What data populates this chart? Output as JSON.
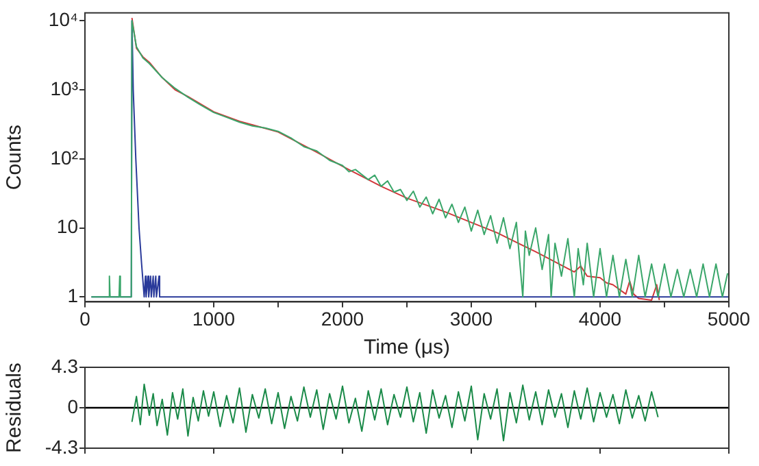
{
  "chart_data": [
    {
      "type": "line",
      "xlabel": "Time (μs)",
      "ylabel": "Counts",
      "log": "y",
      "marker": "none",
      "grid": false,
      "legend": false,
      "xlim": [
        0,
        5000
      ],
      "xticks": [
        0,
        {
          "value": 500,
          "label": null
        },
        1000,
        {
          "value": 1500,
          "label": null
        },
        2000,
        {
          "value": 2500,
          "label": null
        },
        3000,
        {
          "value": 3500,
          "label": null
        },
        4000,
        {
          "value": 4500,
          "label": null
        },
        5000
      ],
      "ylim": [
        0.85,
        13000
      ],
      "yticks": [
        1,
        10,
        {
          "value": 100,
          "label": "10²"
        },
        {
          "value": 1000,
          "label": "10³"
        },
        {
          "value": 10000,
          "label": "10⁴"
        }
      ],
      "series": [
        {
          "color": "#3aa66a",
          "x": [
            50,
            185,
            190,
            195,
            265,
            270,
            275,
            360,
            365,
            400,
            450,
            500,
            600,
            700,
            800,
            900,
            1000,
            1100,
            1200,
            1300,
            1400,
            1500,
            1600,
            1700,
            1800,
            1900,
            2000,
            2050,
            2100,
            2200,
            2250,
            2300,
            2350,
            2400,
            2450,
            2500,
            2550,
            2600,
            2650,
            2700,
            2750,
            2800,
            2850,
            2900,
            2950,
            3000,
            3050,
            3100,
            3150,
            3200,
            3250,
            3300,
            3350,
            3400,
            3420,
            3450,
            3500,
            3550,
            3600,
            3620,
            3650,
            3700,
            3750,
            3800,
            3830,
            3870,
            3900,
            3950,
            4000,
            4050,
            4100,
            4150,
            4200,
            4250,
            4300,
            4350,
            4400,
            4450,
            4500,
            4550,
            4600,
            4650,
            4700,
            4750,
            4800,
            4850,
            4900,
            4950,
            4990
          ],
          "values": [
            1,
            1,
            2,
            1,
            1,
            2,
            1,
            1,
            10000,
            4200,
            2900,
            2400,
            1500,
            1050,
            780,
            600,
            470,
            400,
            340,
            300,
            280,
            250,
            200,
            150,
            130,
            95,
            80,
            65,
            70,
            50,
            58,
            40,
            48,
            33,
            36,
            25,
            34,
            20,
            28,
            16,
            26,
            14,
            22,
            12,
            20,
            9,
            18,
            8,
            15,
            6,
            14,
            5,
            12,
            1,
            9,
            4,
            10,
            2.5,
            8,
            1,
            6,
            2,
            7,
            1,
            5,
            1.5,
            6,
            1,
            5,
            1,
            4,
            1,
            3.5,
            1,
            4,
            1,
            3,
            1,
            3,
            1,
            2.5,
            1,
            2.5,
            1,
            3,
            1,
            3,
            1,
            2.2
          ]
        },
        {
          "color": "#2a3a9a",
          "x": [
            50,
            360,
            365,
            375,
            395,
            420,
            440,
            460,
            470,
            475,
            490,
            495,
            510,
            515,
            530,
            535,
            550,
            555,
            575,
            580,
            5000
          ],
          "values": [
            1,
            1,
            10000,
            1000,
            100,
            10,
            3,
            1,
            2,
            1,
            2,
            1,
            2,
            1,
            2,
            1,
            2,
            1,
            2,
            1,
            1
          ]
        },
        {
          "color": "#d2363a",
          "x": [
            365,
            400,
            450,
            500,
            600,
            700,
            800,
            1000,
            1200,
            1500,
            1800,
            2000,
            2300,
            2500,
            2800,
            3000,
            3200,
            3500,
            3800,
            3850,
            3900,
            4000,
            4050,
            4100,
            4200,
            4230,
            4260,
            4300,
            4400,
            4440,
            4460
          ],
          "values": [
            11000,
            4000,
            3000,
            2500,
            1500,
            1000,
            800,
            480,
            350,
            245,
            125,
            78,
            40,
            27,
            17,
            12,
            8.5,
            4.5,
            2.3,
            2.8,
            2.0,
            1.9,
            1.6,
            1.5,
            1.1,
            1.7,
            1.1,
            0.95,
            0.9,
            1.5,
            0.9
          ]
        }
      ]
    },
    {
      "type": "line",
      "ylabel": "Residuals",
      "marker": "none",
      "grid": false,
      "legend": false,
      "tick_labels": "y",
      "xlim": [
        0,
        5000
      ],
      "xticks": [
        {
          "value": 0,
          "label": null
        },
        {
          "value": 1000,
          "label": null
        },
        {
          "value": 2000,
          "label": null
        },
        {
          "value": 3000,
          "label": null
        },
        {
          "value": 4000,
          "label": null
        },
        {
          "value": 5000,
          "label": null
        }
      ],
      "ylim": [
        -4.3,
        4.3
      ],
      "yticks": [
        -4.3,
        0,
        4.3
      ],
      "ref_lines": [
        {
          "axis": "y",
          "value": 0,
          "color": "#000000"
        }
      ],
      "series": [
        {
          "color": "#1a8a48",
          "x": [
            365,
            400,
            430,
            460,
            500,
            530,
            560,
            600,
            640,
            680,
            720,
            760,
            800,
            840,
            880,
            920,
            960,
            1000,
            1050,
            1100,
            1150,
            1200,
            1250,
            1300,
            1350,
            1400,
            1450,
            1500,
            1550,
            1600,
            1650,
            1700,
            1750,
            1800,
            1850,
            1900,
            1950,
            2000,
            2050,
            2100,
            2150,
            2200,
            2250,
            2300,
            2350,
            2400,
            2450,
            2500,
            2550,
            2600,
            2650,
            2700,
            2750,
            2800,
            2850,
            2900,
            2950,
            3000,
            3050,
            3100,
            3150,
            3200,
            3250,
            3300,
            3350,
            3400,
            3450,
            3500,
            3550,
            3600,
            3650,
            3700,
            3750,
            3800,
            3850,
            3900,
            3950,
            4000,
            4050,
            4100,
            4150,
            4200,
            4250,
            4300,
            4350,
            4400,
            4450
          ],
          "values": [
            -1.5,
            1.2,
            -1.8,
            2.5,
            -0.8,
            1.5,
            -1.9,
            0.9,
            -2.9,
            1.6,
            -1.2,
            2.0,
            -3.0,
            1.1,
            -1.4,
            1.8,
            -0.9,
            1.7,
            -2.0,
            1.3,
            -1.6,
            2.1,
            -2.6,
            1.4,
            -1.1,
            2.0,
            -1.7,
            1.6,
            -2.2,
            1.2,
            -1.4,
            2.2,
            -1.0,
            1.9,
            -2.3,
            1.5,
            -1.2,
            2.3,
            -1.6,
            1.0,
            -2.5,
            1.8,
            -1.3,
            2.0,
            -1.8,
            1.4,
            -1.0,
            2.2,
            -1.5,
            1.6,
            -2.7,
            1.9,
            -1.1,
            1.3,
            -2.1,
            1.7,
            -1.4,
            2.3,
            -3.4,
            1.5,
            -1.2,
            2.0,
            -3.5,
            1.6,
            -1.6,
            2.4,
            -1.3,
            1.7,
            -1.8,
            1.9,
            -1.0,
            1.5,
            -2.1,
            1.8,
            -1.2,
            2.1,
            -1.5,
            1.6,
            -1.0,
            1.4,
            -1.7,
            1.9,
            -1.1,
            1.3,
            -1.4,
            1.7,
            -1.0
          ]
        }
      ]
    }
  ]
}
